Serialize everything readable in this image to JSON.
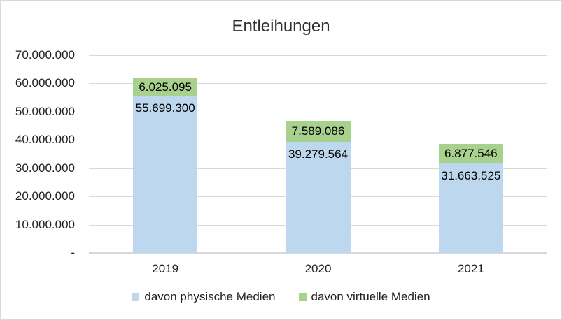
{
  "chart_data": {
    "type": "bar",
    "stacked": true,
    "title": "Entleihungen",
    "categories": [
      "2019",
      "2020",
      "2021"
    ],
    "series": [
      {
        "name": "davon physische Medien",
        "color": "#bdd7ee",
        "values": [
          55699300,
          39279564,
          31663525
        ],
        "labels": [
          "55.699.300",
          "39.279.564",
          "31.663.525"
        ]
      },
      {
        "name": "davon virtuelle Medien",
        "color": "#a9d18e",
        "values": [
          6025095,
          7589086,
          6877546
        ],
        "labels": [
          "6.025.095",
          "7.589.086",
          "6.877.546"
        ]
      }
    ],
    "ylim": [
      0,
      70000000
    ],
    "y_ticks": [
      {
        "value": 70000000,
        "label": "70.000.000"
      },
      {
        "value": 60000000,
        "label": "60.000.000"
      },
      {
        "value": 50000000,
        "label": "50.000.000"
      },
      {
        "value": 40000000,
        "label": "40.000.000"
      },
      {
        "value": 30000000,
        "label": "30.000.000"
      },
      {
        "value": 20000000,
        "label": "20.000.000"
      },
      {
        "value": 10000000,
        "label": "10.000.000"
      },
      {
        "value": 0,
        "label": "-"
      }
    ],
    "grid": true,
    "legend_position": "bottom"
  },
  "colors": {
    "gridline": "#d9d9d9",
    "border": "#d9d9d9",
    "text": "#1f1f1f",
    "data_label": "#000000"
  }
}
